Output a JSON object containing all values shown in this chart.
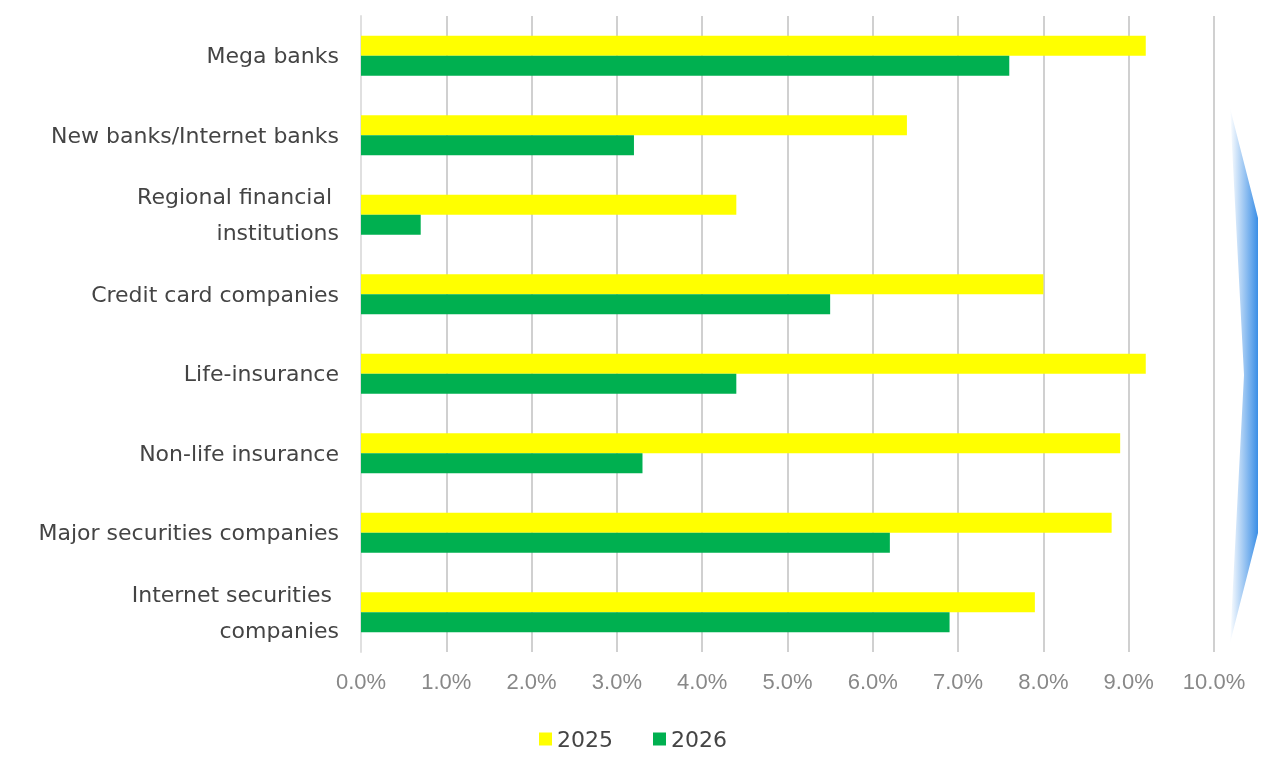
{
  "chart_data": {
    "type": "bar",
    "orientation": "horizontal",
    "categories": [
      "Mega banks",
      "New banks/Internet banks",
      "Regional financial institutions",
      "Credit card companies",
      "Life-insurance",
      "Non-life insurance",
      "Major securities companies",
      "Internet securities companies"
    ],
    "series": [
      {
        "name": "2025",
        "color": "#ffff00",
        "values": [
          9.2,
          6.4,
          4.4,
          8.0,
          9.2,
          8.9,
          8.8,
          7.9
        ]
      },
      {
        "name": "2026",
        "color": "#00b050",
        "values": [
          7.6,
          3.2,
          0.7,
          5.5,
          4.4,
          3.3,
          6.2,
          6.9
        ]
      }
    ],
    "xlim": [
      0,
      10
    ],
    "xticks": [
      {
        "value": 0,
        "label": "0.0%"
      },
      {
        "value": 1,
        "label": "1.0%"
      },
      {
        "value": 2,
        "label": "2.0%"
      },
      {
        "value": 3,
        "label": "3.0%"
      },
      {
        "value": 4,
        "label": "4.0%"
      },
      {
        "value": 5,
        "label": "5.0%"
      },
      {
        "value": 6,
        "label": "6.0%"
      },
      {
        "value": 7,
        "label": "7.0%"
      },
      {
        "value": 8,
        "label": "8.0%"
      },
      {
        "value": 9,
        "label": "9.0%"
      },
      {
        "value": 10,
        "label": "10.0%"
      }
    ],
    "grid": "x",
    "legend": "bottom"
  }
}
